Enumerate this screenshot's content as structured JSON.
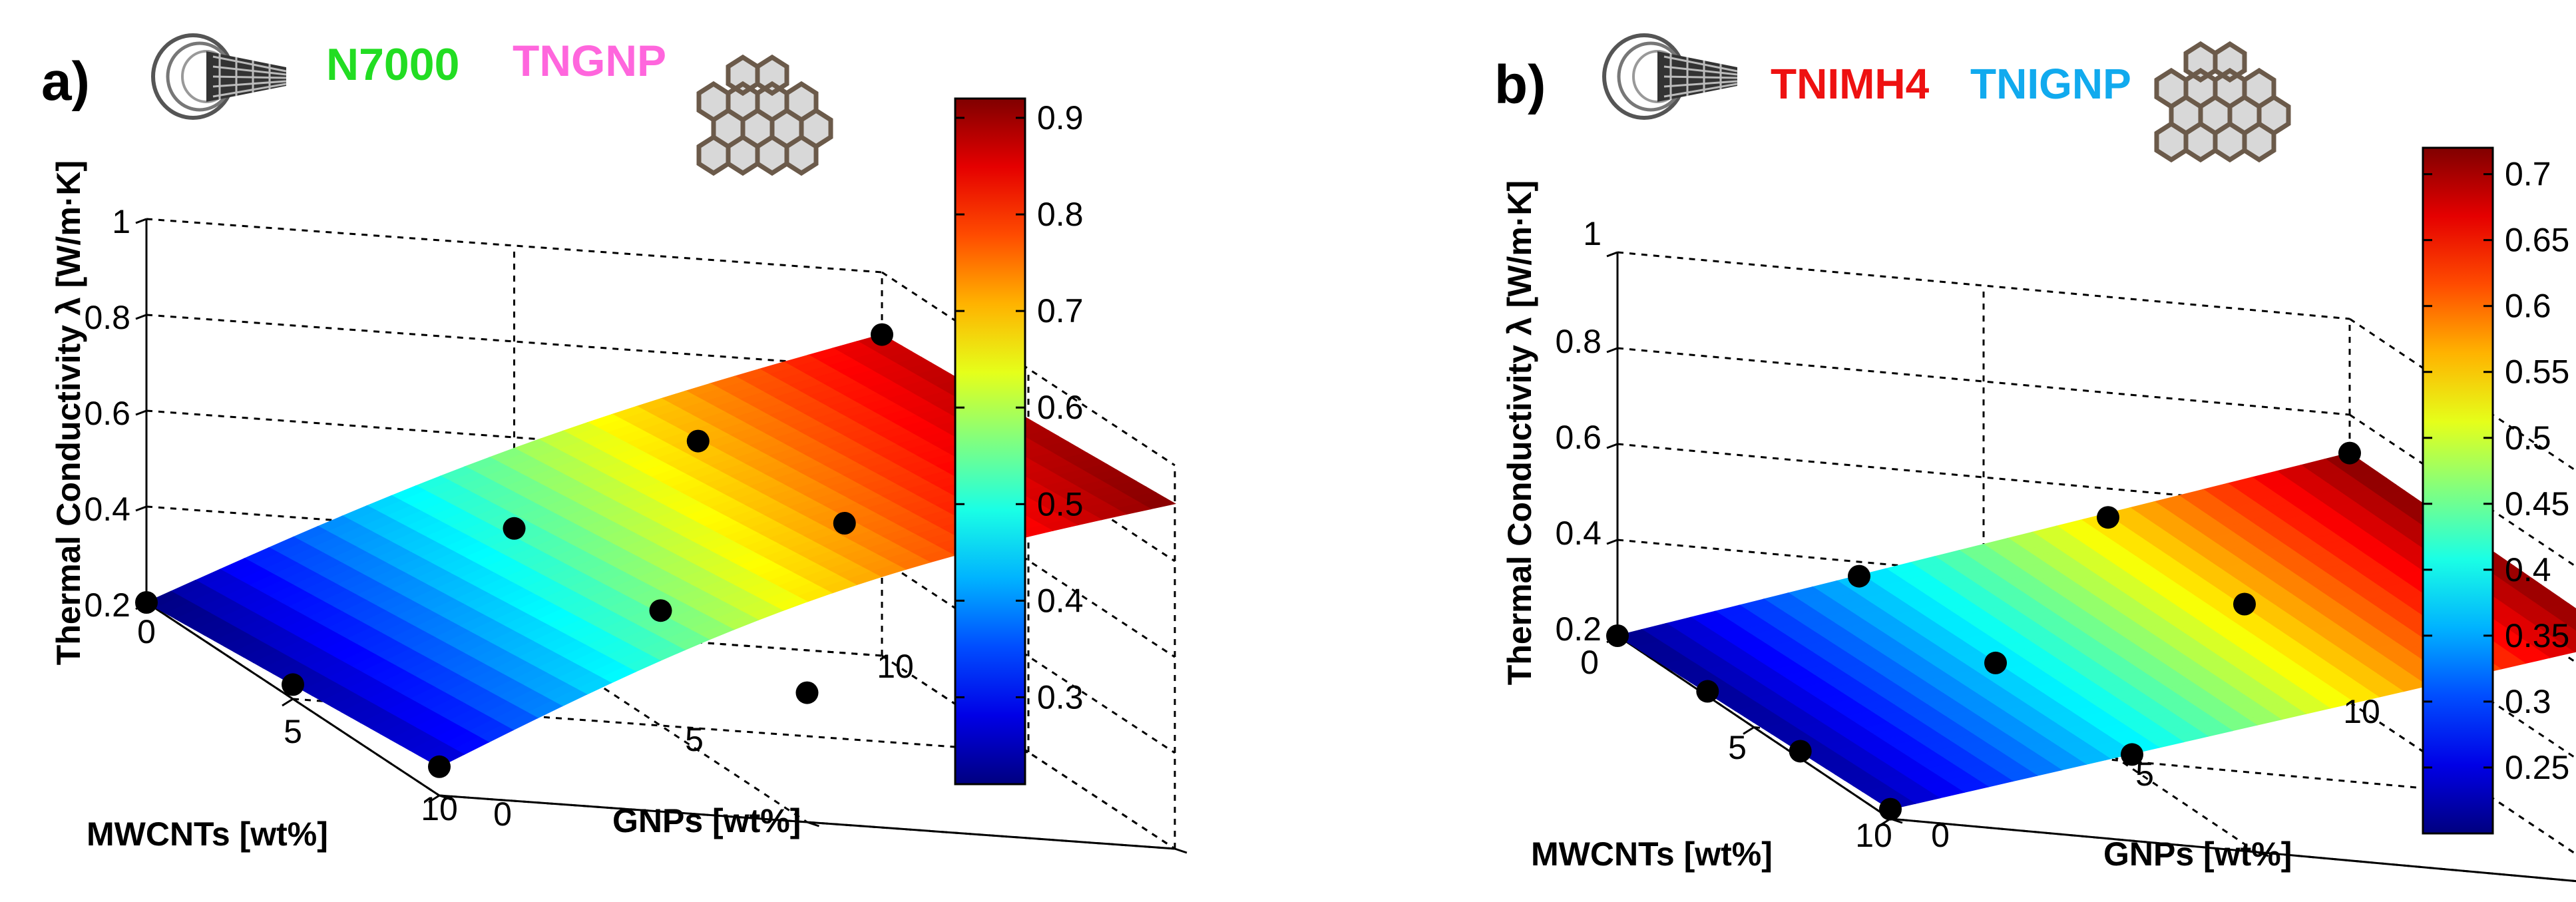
{
  "chart_data": [
    {
      "type": "surface",
      "panel_label": "a)",
      "legend": [
        {
          "name": "N7000",
          "color": "#22dd22"
        },
        {
          "name": "TNGNP",
          "color": "#ff66dd"
        }
      ],
      "xlabel": "MWCNTs [wt%]",
      "ylabel": "GNPs [wt%]",
      "zlabel": "Thermal Conductivity λ [W/m·K]",
      "x_range": [
        0,
        10
      ],
      "y_range": [
        0,
        10
      ],
      "z_range": [
        0.2,
        1.0
      ],
      "x_ticks": [
        "0",
        "5",
        "10"
      ],
      "y_ticks": [
        "0",
        "5",
        "10"
      ],
      "z_ticks": [
        "0.2",
        "0.4",
        "0.6",
        "0.8",
        "1"
      ],
      "grid": true,
      "surface_corners": {
        "z00": 0.2,
        "z10": 0.26,
        "z01": 0.87,
        "z11": 0.92
      },
      "points": [
        {
          "mwcnt": 0,
          "gnp": 0,
          "lambda": 0.2
        },
        {
          "mwcnt": 5,
          "gnp": 0,
          "lambda": 0.23
        },
        {
          "mwcnt": 10,
          "gnp": 0,
          "lambda": 0.26
        },
        {
          "mwcnt": 0,
          "gnp": 5,
          "lambda": 0.41
        },
        {
          "mwcnt": 5,
          "gnp": 5,
          "lambda": 0.44
        },
        {
          "mwcnt": 10,
          "gnp": 5,
          "lambda": 0.47
        },
        {
          "mwcnt": 0,
          "gnp": 7.5,
          "lambda": 0.62
        },
        {
          "mwcnt": 5,
          "gnp": 7.5,
          "lambda": 0.65
        },
        {
          "mwcnt": 0,
          "gnp": 10,
          "lambda": 0.87
        }
      ],
      "colorbar": {
        "min": 0.21,
        "max": 0.92,
        "ticks": [
          "0.3",
          "0.4",
          "0.5",
          "0.6",
          "0.7",
          "0.8",
          "0.9"
        ],
        "tick_values": [
          0.3,
          0.4,
          0.5,
          0.6,
          0.7,
          0.8,
          0.9
        ]
      }
    },
    {
      "type": "surface",
      "panel_label": "b)",
      "legend": [
        {
          "name": "TNIMH4",
          "color": "#ee1111"
        },
        {
          "name": "TNIGNP",
          "color": "#11aaee"
        }
      ],
      "xlabel": "MWCNTs [wt%]",
      "ylabel": "GNPs [wt%]",
      "zlabel": "Thermal Conductivity λ [W/m·K]",
      "x_range": [
        0,
        10
      ],
      "y_range": [
        0,
        10
      ],
      "z_range": [
        0.2,
        1.0
      ],
      "x_ticks": [
        "0",
        "5",
        "10"
      ],
      "y_ticks": [
        "0",
        "5",
        "10"
      ],
      "z_ticks": [
        "0.2",
        "0.4",
        "0.6",
        "0.8",
        "1"
      ],
      "grid": true,
      "surface_corners": {
        "z00": 0.2,
        "z10": 0.22,
        "z01": 0.72,
        "z11": 0.71
      },
      "points": [
        {
          "mwcnt": 0,
          "gnp": 0,
          "lambda": 0.2
        },
        {
          "mwcnt": 3.3,
          "gnp": 0,
          "lambda": 0.21
        },
        {
          "mwcnt": 6.7,
          "gnp": 0,
          "lambda": 0.215
        },
        {
          "mwcnt": 10,
          "gnp": 0,
          "lambda": 0.22
        },
        {
          "mwcnt": 0,
          "gnp": 3.3,
          "lambda": 0.37
        },
        {
          "mwcnt": 5,
          "gnp": 3.3,
          "lambda": 0.38
        },
        {
          "mwcnt": 10,
          "gnp": 3.3,
          "lambda": 0.38
        },
        {
          "mwcnt": 0,
          "gnp": 6.7,
          "lambda": 0.54
        },
        {
          "mwcnt": 5,
          "gnp": 6.7,
          "lambda": 0.55
        },
        {
          "mwcnt": 0,
          "gnp": 10,
          "lambda": 0.72
        }
      ],
      "colorbar": {
        "min": 0.2,
        "max": 0.72,
        "ticks": [
          "0.25",
          "0.3",
          "0.35",
          "0.4",
          "0.45",
          "0.5",
          "0.55",
          "0.6",
          "0.65",
          "0.7"
        ],
        "tick_values": [
          0.25,
          0.3,
          0.35,
          0.4,
          0.45,
          0.5,
          0.55,
          0.6,
          0.65,
          0.7
        ]
      }
    }
  ]
}
